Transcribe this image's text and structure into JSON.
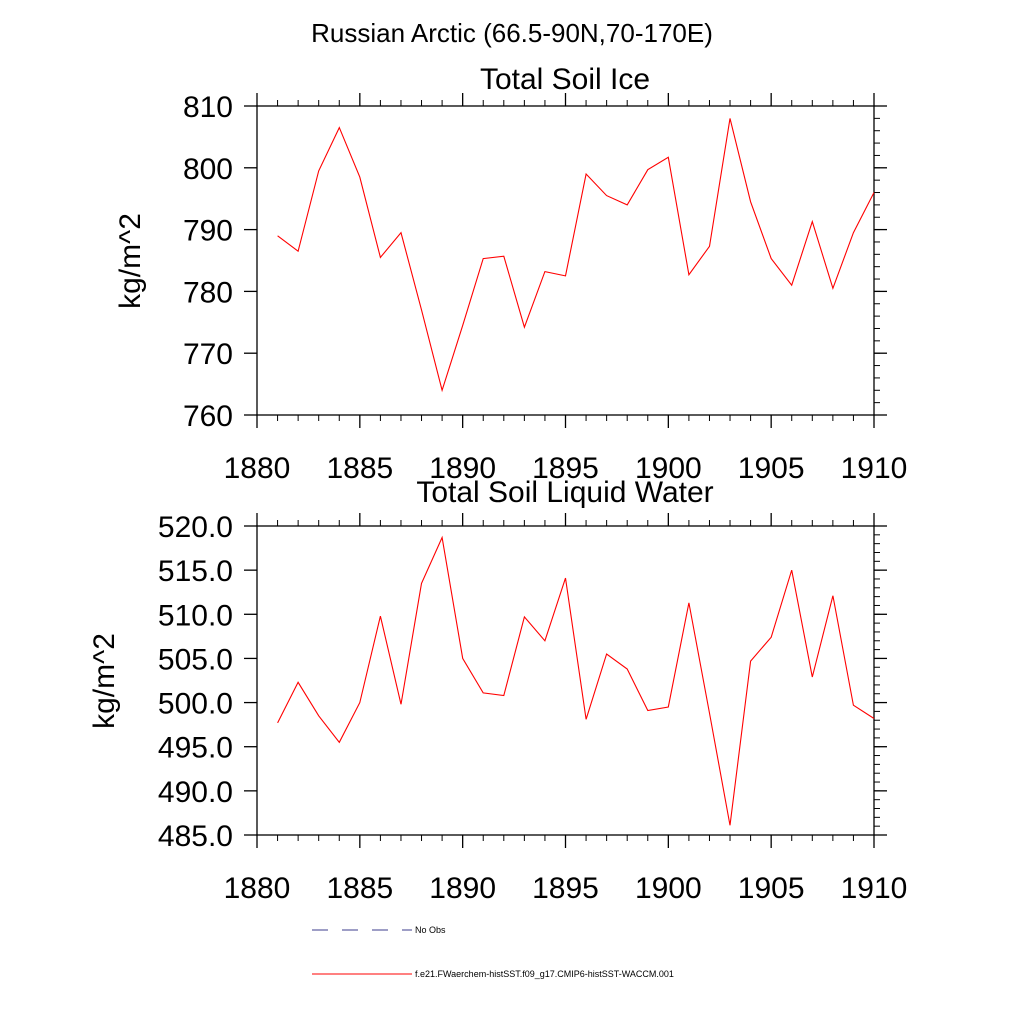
{
  "figure": {
    "title": "Russian Arctic (66.5-90N,70-170E)"
  },
  "chart_data": [
    {
      "type": "line",
      "title": "Total Soil Ice",
      "xlabel": "",
      "ylabel": "kg/m^2",
      "xlim": [
        1880,
        1910
      ],
      "ylim": [
        760,
        810
      ],
      "xticks": [
        1880,
        1885,
        1890,
        1895,
        1900,
        1905,
        1910
      ],
      "xtick_labels": [
        "1880",
        "1885",
        "1890",
        "1895",
        "1900",
        "1905",
        "1910"
      ],
      "yticks": [
        760,
        770,
        780,
        790,
        800,
        810
      ],
      "ytick_labels": [
        "760",
        "770",
        "780",
        "790",
        "800",
        "810"
      ],
      "grid": false,
      "series": [
        {
          "name": "f.e21.FWaerchem-histSST.f09_g17.CMIP6-histSST-WACCM.001",
          "color": "#ff0000",
          "x": [
            1881,
            1882,
            1883,
            1884,
            1885,
            1886,
            1887,
            1888,
            1889,
            1890,
            1891,
            1892,
            1893,
            1894,
            1895,
            1896,
            1897,
            1898,
            1899,
            1900,
            1901,
            1902,
            1903,
            1904,
            1905,
            1906,
            1907,
            1908,
            1909,
            1910
          ],
          "values": [
            789.0,
            786.5,
            799.5,
            806.5,
            798.5,
            785.5,
            789.5,
            777.0,
            764.0,
            774.5,
            785.3,
            785.7,
            774.2,
            783.2,
            782.5,
            799.0,
            795.5,
            794.0,
            799.7,
            801.7,
            782.7,
            787.3,
            808.0,
            794.5,
            785.3,
            781.0,
            791.3,
            780.5,
            789.5,
            796.0
          ]
        }
      ]
    },
    {
      "type": "line",
      "title": "Total Soil Liquid Water",
      "xlabel": "",
      "ylabel": "kg/m^2",
      "xlim": [
        1880,
        1910
      ],
      "ylim": [
        485,
        520
      ],
      "xticks": [
        1880,
        1885,
        1890,
        1895,
        1900,
        1905,
        1910
      ],
      "xtick_labels": [
        "1880",
        "1885",
        "1890",
        "1895",
        "1900",
        "1905",
        "1910"
      ],
      "yticks": [
        485,
        490,
        495,
        500,
        505,
        510,
        515,
        520
      ],
      "ytick_labels": [
        "485.0",
        "490.0",
        "495.0",
        "500.0",
        "505.0",
        "510.0",
        "515.0",
        "520.0"
      ],
      "grid": false,
      "series": [
        {
          "name": "f.e21.FWaerchem-histSST.f09_g17.CMIP6-histSST-WACCM.001",
          "color": "#ff0000",
          "x": [
            1881,
            1882,
            1883,
            1884,
            1885,
            1886,
            1887,
            1888,
            1889,
            1890,
            1891,
            1892,
            1893,
            1894,
            1895,
            1896,
            1897,
            1898,
            1899,
            1900,
            1901,
            1902,
            1903,
            1904,
            1905,
            1906,
            1907,
            1908,
            1909,
            1910
          ],
          "values": [
            497.7,
            502.3,
            498.5,
            495.5,
            500.0,
            509.8,
            499.8,
            513.5,
            518.7,
            505.0,
            501.1,
            500.8,
            509.7,
            507.0,
            514.1,
            498.1,
            505.5,
            503.8,
            499.1,
            499.5,
            511.3,
            498.8,
            486.1,
            504.7,
            507.4,
            515.0,
            502.9,
            512.1,
            499.7,
            498.2
          ]
        }
      ]
    }
  ],
  "legend": {
    "placement": "bottom",
    "items": [
      {
        "label": "No Obs",
        "color": "#3c3c8c",
        "style": "dashed"
      },
      {
        "label": "f.e21.FWaerchem-histSST.f09_g17.CMIP6-histSST-WACCM.001",
        "color": "#ff0000",
        "style": "solid"
      }
    ]
  }
}
